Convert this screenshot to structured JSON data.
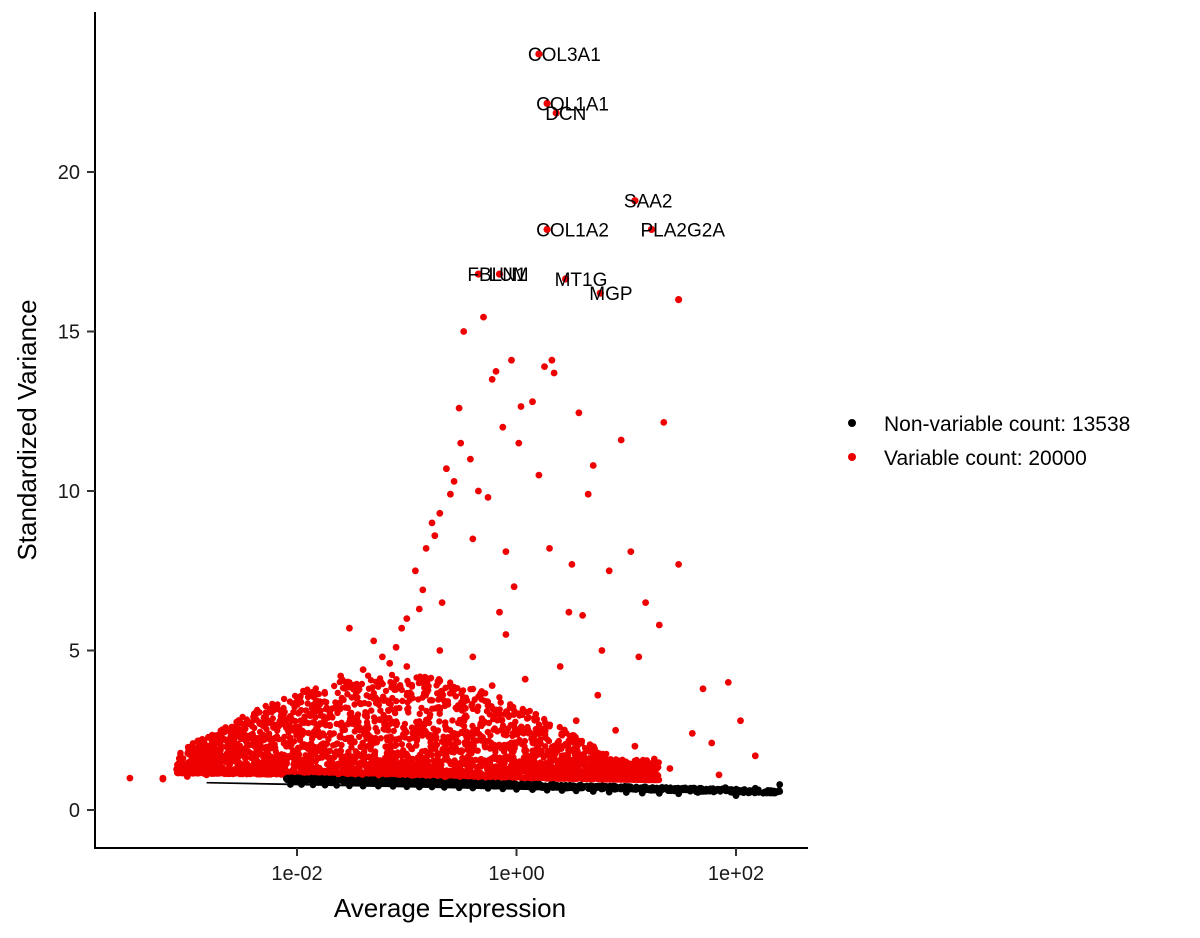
{
  "chart_data": {
    "type": "scatter",
    "xlabel": "Average Expression",
    "ylabel": "Standardized Variance",
    "x_scale": "log10",
    "xlim": [
      0.0002,
      700
    ],
    "ylim": [
      -1.2,
      25
    ],
    "x_ticks": [
      {
        "value": 0.01,
        "label": "1e-02"
      },
      {
        "value": 1,
        "label": "1e+00"
      },
      {
        "value": 100,
        "label": "1e+02"
      }
    ],
    "y_ticks": [
      {
        "value": 0,
        "label": "0"
      },
      {
        "value": 5,
        "label": "5"
      },
      {
        "value": 10,
        "label": "10"
      },
      {
        "value": 15,
        "label": "15"
      },
      {
        "value": 20,
        "label": "20"
      }
    ],
    "grid": false,
    "legend_position": "right",
    "series": [
      {
        "name": "Non-variable count: 13538",
        "color": "#000000",
        "points": [
          [
            0.0087,
            0.8
          ],
          [
            0.011,
            0.8
          ],
          [
            0.014,
            0.79
          ],
          [
            0.018,
            0.78
          ],
          [
            0.023,
            0.77
          ],
          [
            0.03,
            0.76
          ],
          [
            0.04,
            0.75
          ],
          [
            0.055,
            0.75
          ],
          [
            0.075,
            0.74
          ],
          [
            0.1,
            0.73
          ],
          [
            0.13,
            0.72
          ],
          [
            0.17,
            0.72
          ],
          [
            0.22,
            0.71
          ],
          [
            0.3,
            0.7
          ],
          [
            0.4,
            0.69
          ],
          [
            0.55,
            0.68
          ],
          [
            0.75,
            0.66
          ],
          [
            1.0,
            0.65
          ],
          [
            1.4,
            0.64
          ],
          [
            1.9,
            0.62
          ],
          [
            2.6,
            0.61
          ],
          [
            3.5,
            0.6
          ],
          [
            5.0,
            0.58
          ],
          [
            7.0,
            0.56
          ],
          [
            10,
            0.55
          ],
          [
            14,
            0.53
          ],
          [
            20,
            0.52
          ],
          [
            30,
            0.51
          ],
          [
            45,
            0.55
          ],
          [
            60,
            0.62
          ],
          [
            80,
            0.7
          ],
          [
            100,
            0.45
          ],
          [
            150,
            0.68
          ],
          [
            250,
            0.8
          ],
          [
            250,
            0.58
          ],
          [
            0.06,
            0.85
          ],
          [
            0.2,
            0.8
          ],
          [
            0.6,
            0.78
          ],
          [
            2.0,
            0.74
          ],
          [
            6.0,
            0.7
          ],
          [
            18,
            0.62
          ],
          [
            35,
            0.66
          ]
        ]
      },
      {
        "name": "Variable count: 20000",
        "color": "#ee0000",
        "points": [
          [
            0.0003,
            1.0
          ],
          [
            0.0006,
            1.0
          ],
          [
            0.0006,
            0.97
          ],
          [
            0.001,
            1.3
          ],
          [
            0.001,
            1.05
          ],
          [
            0.0015,
            1.9
          ],
          [
            0.0015,
            1.1
          ],
          [
            0.002,
            1.6
          ],
          [
            0.003,
            1.85
          ],
          [
            0.003,
            1.3
          ],
          [
            0.005,
            2.2
          ],
          [
            0.005,
            2.9
          ],
          [
            0.007,
            2.7
          ],
          [
            0.008,
            2.0
          ],
          [
            0.01,
            3.4
          ],
          [
            0.015,
            3.1
          ],
          [
            0.02,
            3.0
          ],
          [
            0.025,
            4.2
          ],
          [
            0.03,
            5.7
          ],
          [
            0.04,
            4.4
          ],
          [
            0.05,
            5.3
          ],
          [
            0.06,
            4.8
          ],
          [
            0.07,
            4.6
          ],
          [
            0.08,
            5.1
          ],
          [
            0.09,
            5.7
          ],
          [
            0.1,
            6.0
          ],
          [
            0.12,
            7.5
          ],
          [
            0.13,
            6.3
          ],
          [
            0.14,
            6.9
          ],
          [
            0.15,
            8.2
          ],
          [
            0.17,
            9.0
          ],
          [
            0.18,
            8.6
          ],
          [
            0.2,
            9.3
          ],
          [
            0.21,
            6.5
          ],
          [
            0.23,
            10.7
          ],
          [
            0.25,
            9.9
          ],
          [
            0.27,
            10.3
          ],
          [
            0.3,
            12.6
          ],
          [
            0.31,
            11.5
          ],
          [
            0.33,
            15.0
          ],
          [
            0.38,
            11.0
          ],
          [
            0.4,
            8.5
          ],
          [
            0.45,
            10.0
          ],
          [
            0.5,
            15.45
          ],
          [
            0.55,
            9.8
          ],
          [
            0.6,
            13.5
          ],
          [
            0.65,
            13.75
          ],
          [
            0.7,
            6.2
          ],
          [
            0.75,
            12.0
          ],
          [
            0.8,
            8.1
          ],
          [
            0.9,
            14.1
          ],
          [
            0.95,
            7.0
          ],
          [
            1.05,
            11.5
          ],
          [
            1.1,
            12.65
          ],
          [
            1.4,
            12.8
          ],
          [
            1.6,
            10.5
          ],
          [
            1.8,
            13.9
          ],
          [
            2.0,
            8.2
          ],
          [
            2.1,
            14.1
          ],
          [
            2.2,
            13.7
          ],
          [
            3.0,
            6.2
          ],
          [
            3.2,
            7.7
          ],
          [
            3.7,
            12.45
          ],
          [
            4.0,
            6.1
          ],
          [
            4.5,
            9.9
          ],
          [
            5.0,
            10.8
          ],
          [
            6.0,
            5.0
          ],
          [
            7.0,
            7.5
          ],
          [
            9.0,
            11.6
          ],
          [
            11,
            8.1
          ],
          [
            13,
            4.8
          ],
          [
            15,
            6.5
          ],
          [
            20,
            5.8
          ],
          [
            22,
            12.15
          ],
          [
            30,
            7.7
          ],
          [
            40,
            2.4
          ],
          [
            50,
            3.8
          ],
          [
            60,
            2.1
          ],
          [
            85,
            4.0
          ],
          [
            110,
            2.8
          ],
          [
            150,
            1.7
          ],
          [
            0.02,
            2.4
          ],
          [
            0.03,
            2.2
          ],
          [
            0.05,
            3.5
          ],
          [
            0.08,
            3.8
          ],
          [
            0.1,
            4.5
          ],
          [
            0.15,
            4.0
          ],
          [
            0.2,
            5.0
          ],
          [
            0.3,
            3.2
          ],
          [
            0.4,
            4.8
          ],
          [
            0.6,
            3.9
          ],
          [
            0.8,
            5.5
          ],
          [
            1.2,
            4.1
          ],
          [
            1.5,
            3.0
          ],
          [
            2.5,
            4.5
          ],
          [
            3.5,
            2.8
          ],
          [
            5.5,
            3.6
          ],
          [
            8.0,
            2.5
          ],
          [
            12,
            2.0
          ],
          [
            18,
            1.6
          ],
          [
            25,
            1.3
          ],
          [
            70,
            1.1
          ]
        ]
      }
    ],
    "labeled_genes": [
      {
        "label": "COL3A1",
        "x": 1.6,
        "y": 23.7
      },
      {
        "label": "COL1A1",
        "x": 1.9,
        "y": 22.15
      },
      {
        "label": "DCN",
        "x": 2.3,
        "y": 21.85
      },
      {
        "label": "SAA2",
        "x": 12.0,
        "y": 19.1
      },
      {
        "label": "COL1A2",
        "x": 1.9,
        "y": 18.2
      },
      {
        "label": "PLA2G2A",
        "x": 17.0,
        "y": 18.2
      },
      {
        "label": "FBLN1",
        "x": 0.45,
        "y": 16.8
      },
      {
        "label": "LUM",
        "x": 0.7,
        "y": 16.8
      },
      {
        "label": "MT1G",
        "x": 2.8,
        "y": 16.65
      },
      {
        "label": "MGP",
        "x": 5.8,
        "y": 16.2
      },
      {
        "label": "",
        "x": 30.0,
        "y": 16.0
      }
    ]
  }
}
